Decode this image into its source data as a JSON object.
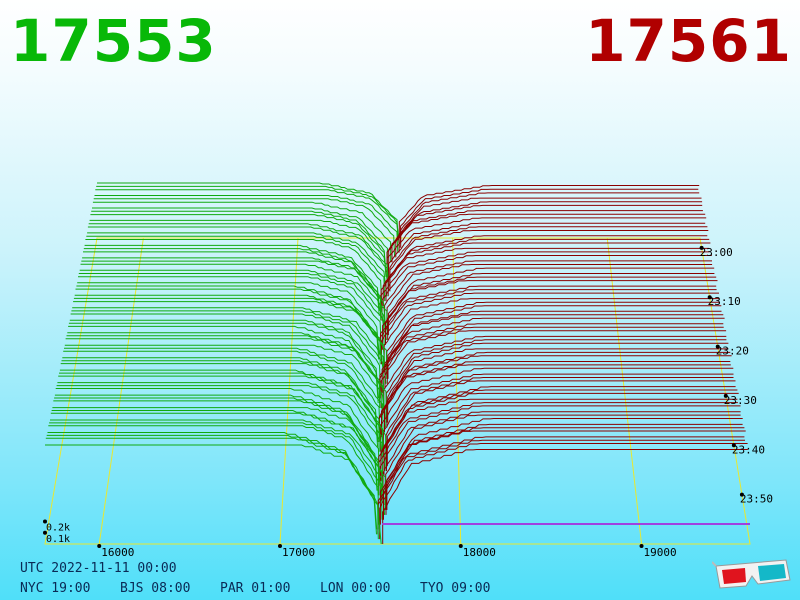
{
  "header": {
    "bid_price": "17553",
    "ask_price": "17561",
    "bid_color": "#08b808",
    "ask_color": "#b00000"
  },
  "chart_data": {
    "type": "area",
    "description_kind": "3d-order-book-depth-waterfall",
    "x_axis": {
      "ticks": [
        16000,
        17000,
        18000,
        19000
      ],
      "tick_labels": [
        "16000",
        "17000",
        "18000",
        "19000"
      ],
      "range": [
        15700,
        19600
      ]
    },
    "depth_axis": {
      "ticks": [
        100,
        200
      ],
      "tick_labels": [
        "0.1k",
        "0.2k"
      ]
    },
    "time_axis": {
      "ticks": [
        "23:00",
        "23:10",
        "23:20",
        "23:30",
        "23:40",
        "23:50"
      ],
      "range_minutes": [
        -62,
        0
      ]
    },
    "series": [
      {
        "name": "bids",
        "color": "#10aa10"
      },
      {
        "name": "asks",
        "color": "#8b0000"
      }
    ],
    "snapshot_count": 64,
    "mid_price": 17557
  },
  "footer": {
    "utc_label": "UTC 2022-11-11 00:00",
    "zones": [
      {
        "label": "NYC 19:00"
      },
      {
        "label": "BJS 08:00"
      },
      {
        "label": "PAR 01:00"
      },
      {
        "label": "LON 00:00"
      },
      {
        "label": "TYO 09:00"
      }
    ]
  },
  "icons": {
    "glasses": "3d-glasses-icon"
  }
}
